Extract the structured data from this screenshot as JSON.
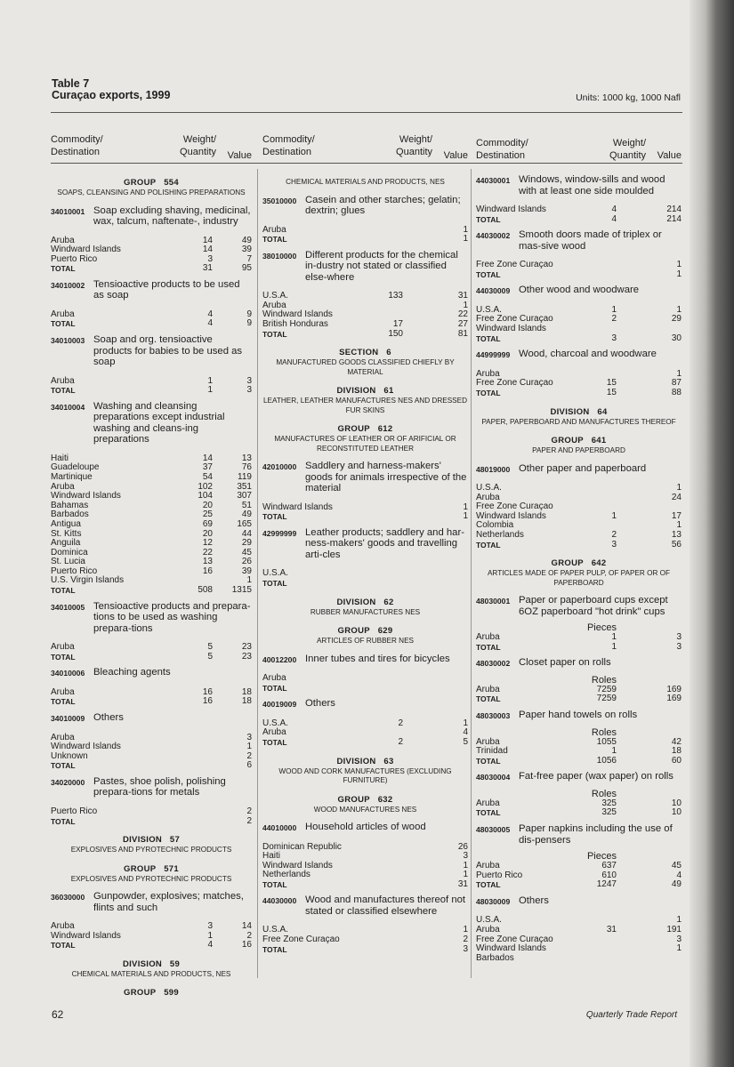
{
  "header": {
    "table": "Table 7",
    "title": "Curaçao exports, 1999",
    "units": "Units: 1000 kg, 1000 Nafl"
  },
  "columns_header": {
    "commodity": "Commodity/",
    "destination": "Destination",
    "weight": "Weight/",
    "quantity": "Quantity",
    "value": "Value"
  },
  "footer": {
    "page": "62",
    "publication": "Quarterly Trade Report"
  },
  "columns": [
    [
      {
        "type": "heading",
        "title": "GROUP 554",
        "subtitle": "SOAPS, CLEANSING AND POLISHING PREPARATIONS"
      },
      {
        "type": "item",
        "code": "34010001",
        "desc": "Soap excluding shaving, medicinal, wax, talcum, naftenate-, industry",
        "rows": [
          [
            "Aruba",
            "14",
            "49"
          ],
          [
            "Windward Islands",
            "14",
            "39"
          ],
          [
            "Puerto Rico",
            "3",
            "7"
          ]
        ],
        "total": [
          "TOTAL",
          "31",
          "95"
        ]
      },
      {
        "type": "item",
        "code": "34010002",
        "desc": "Tensioactive products to be used as soap",
        "rows": [
          [
            "Aruba",
            "4",
            "9"
          ]
        ],
        "total": [
          "TOTAL",
          "4",
          "9"
        ]
      },
      {
        "type": "item",
        "code": "34010003",
        "desc": "Soap and org. tensioactive products for babies to be used as soap",
        "rows": [
          [
            "Aruba",
            "1",
            "3"
          ]
        ],
        "total": [
          "TOTAL",
          "1",
          "3"
        ]
      },
      {
        "type": "item",
        "code": "34010004",
        "desc": "Washing and cleansing preparations except industrial washing and cleans-ing preparations",
        "rows": [
          [
            "Haiti",
            "14",
            "13"
          ],
          [
            "Guadeloupe",
            "37",
            "76"
          ],
          [
            "Martinique",
            "54",
            "119"
          ],
          [
            "Aruba",
            "102",
            "351"
          ],
          [
            "Windward Islands",
            "104",
            "307"
          ],
          [
            "Bahamas",
            "20",
            "51"
          ],
          [
            "Barbados",
            "25",
            "49"
          ],
          [
            "Antigua",
            "69",
            "165"
          ],
          [
            "St. Kitts",
            "20",
            "44"
          ],
          [
            "Anguila",
            "12",
            "29"
          ],
          [
            "Dominica",
            "22",
            "45"
          ],
          [
            "St. Lucia",
            "13",
            "26"
          ],
          [
            "Puerto Rico",
            "16",
            "39"
          ],
          [
            "U.S. Virgin Islands",
            "",
            "1"
          ]
        ],
        "total": [
          "TOTAL",
          "508",
          "1315"
        ]
      },
      {
        "type": "item",
        "code": "34010005",
        "desc": "Tensioactive products and prepara-tions to be used as washing prepara-tions",
        "rows": [
          [
            "Aruba",
            "5",
            "23"
          ]
        ],
        "total": [
          "TOTAL",
          "5",
          "23"
        ]
      },
      {
        "type": "item",
        "code": "34010006",
        "desc": "Bleaching agents",
        "rows": [
          [
            "Aruba",
            "16",
            "18"
          ]
        ],
        "total": [
          "TOTAL",
          "16",
          "18"
        ]
      },
      {
        "type": "item",
        "code": "34010009",
        "desc": "Others",
        "rows": [
          [
            "Aruba",
            "",
            "3"
          ],
          [
            "Windward Islands",
            "",
            "1"
          ],
          [
            "Unknown",
            "",
            "2"
          ]
        ],
        "total": [
          "TOTAL",
          "",
          "6"
        ]
      },
      {
        "type": "item",
        "code": "34020000",
        "desc": "Pastes, shoe polish, polishing prepara-tions for metals",
        "rows": [
          [
            "Puerto Rico",
            "",
            "2"
          ]
        ],
        "total": [
          "TOTAL",
          "",
          "2"
        ]
      },
      {
        "type": "heading",
        "title": "DIVISION 57",
        "subtitle": "EXPLOSIVES AND PYROTECHNIC PRODUCTS"
      },
      {
        "type": "heading",
        "title": "GROUP 571",
        "subtitle": "EXPLOSIVES AND PYROTECHNIC PRODUCTS"
      },
      {
        "type": "item",
        "code": "36030000",
        "desc": "Gunpowder, explosives; matches, flints and such",
        "rows": [
          [
            "Aruba",
            "3",
            "14"
          ],
          [
            "Windward Islands",
            "1",
            "2"
          ]
        ],
        "total": [
          "TOTAL",
          "4",
          "16"
        ]
      },
      {
        "type": "heading",
        "title": "DIVISION 59",
        "subtitle": "CHEMICAL MATERIALS AND PRODUCTS, NES"
      },
      {
        "type": "heading",
        "title": "GROUP 599",
        "subtitle": ""
      }
    ],
    [
      {
        "type": "heading",
        "title": "",
        "subtitle": "CHEMICAL MATERIALS AND PRODUCTS, NES"
      },
      {
        "type": "item",
        "code": "35010000",
        "desc": "Casein and other starches; gelatin; dextrin; glues",
        "rows": [
          [
            "Aruba",
            "",
            "1"
          ]
        ],
        "total": [
          "TOTAL",
          "",
          "1"
        ]
      },
      {
        "type": "item",
        "code": "38010000",
        "desc": "Different products for the chemical in-dustry not stated or classified else-where",
        "rows": [
          [
            "U.S.A.",
            "133",
            "31"
          ],
          [
            "Aruba",
            "",
            "1"
          ],
          [
            "Windward Islands",
            "",
            "22"
          ],
          [
            "British Honduras",
            "17",
            "27"
          ]
        ],
        "total": [
          "TOTAL",
          "150",
          "81"
        ]
      },
      {
        "type": "heading",
        "title": "SECTION 6",
        "subtitle": "MANUFACTURED GOODS CLASSIFIED CHIEFLY BY MATERIAL"
      },
      {
        "type": "heading",
        "title": "DIVISION 61",
        "subtitle": "LEATHER, LEATHER MANUFACTURES NES AND DRESSED FUR SKINS"
      },
      {
        "type": "heading",
        "title": "GROUP 612",
        "subtitle": "MANUFACTURES OF LEATHER OR OF ARIFICIAL OR RECONSTITUTED LEATHER"
      },
      {
        "type": "item",
        "code": "42010000",
        "desc": "Saddlery and harness-makers' goods for animals irrespective of the material",
        "rows": [
          [
            "Windward Islands",
            "",
            "1"
          ]
        ],
        "total": [
          "TOTAL",
          "",
          "1"
        ]
      },
      {
        "type": "item",
        "code": "42999999",
        "desc": "Leather products; saddlery and har-ness-makers' goods and travelling arti-cles",
        "rows": [
          [
            "U.S.A.",
            "",
            ""
          ]
        ],
        "total": [
          "TOTAL",
          "",
          ""
        ]
      },
      {
        "type": "heading",
        "title": "DIVISION 62",
        "subtitle": "RUBBER MANUFACTURES NES"
      },
      {
        "type": "heading",
        "title": "GROUP 629",
        "subtitle": "ARTICLES OF RUBBER NES"
      },
      {
        "type": "item",
        "code": "40012200",
        "desc": "Inner tubes and tires for bicycles",
        "rows": [
          [
            "Aruba",
            "",
            ""
          ]
        ],
        "total": [
          "TOTAL",
          "",
          ""
        ]
      },
      {
        "type": "item",
        "code": "40019009",
        "desc": "Others",
        "rows": [
          [
            "U.S.A.",
            "2",
            "1"
          ],
          [
            "Aruba",
            "",
            "4"
          ]
        ],
        "total": [
          "TOTAL",
          "2",
          "5"
        ]
      },
      {
        "type": "heading",
        "title": "DIVISION 63",
        "subtitle": "WOOD AND CORK MANUFACTURES (EXCLUDING FURNITURE)"
      },
      {
        "type": "heading",
        "title": "GROUP 632",
        "subtitle": "WOOD MANUFACTURES NES"
      },
      {
        "type": "item",
        "code": "44010000",
        "desc": "Household articles of wood",
        "rows": [
          [
            "Dominican Republic",
            "",
            "26"
          ],
          [
            "Haiti",
            "",
            "3"
          ],
          [
            "Windward Islands",
            "",
            "1"
          ],
          [
            "Netherlands",
            "",
            "1"
          ]
        ],
        "total": [
          "TOTAL",
          "",
          "31"
        ]
      },
      {
        "type": "item",
        "code": "44030000",
        "desc": "Wood and manufactures thereof not stated or classified elsewhere",
        "rows": [
          [
            "U.S.A.",
            "",
            "1"
          ],
          [
            "Free Zone Curaçao",
            "",
            "2"
          ]
        ],
        "total": [
          "TOTAL",
          "",
          "3"
        ]
      }
    ],
    [
      {
        "type": "item",
        "code": "44030001",
        "desc": "Windows, window-sills and wood with at least one side moulded",
        "rows": [
          [
            "Windward Islands",
            "4",
            "214"
          ]
        ],
        "total": [
          "TOTAL",
          "4",
          "214"
        ]
      },
      {
        "type": "item",
        "code": "44030002",
        "desc": "Smooth doors made of triplex or mas-sive wood",
        "rows": [
          [
            "Free Zone Curaçao",
            "",
            "1"
          ]
        ],
        "total": [
          "TOTAL",
          "",
          "1"
        ]
      },
      {
        "type": "item",
        "code": "44030009",
        "desc": "Other wood and woodware",
        "rows": [
          [
            "U.S.A.",
            "1",
            "1"
          ],
          [
            "Free Zone Curaçao",
            "2",
            "29"
          ],
          [
            "Windward Islands",
            "",
            ""
          ]
        ],
        "total": [
          "TOTAL",
          "3",
          "30"
        ]
      },
      {
        "type": "item",
        "code": "44999999",
        "desc": "Wood, charcoal and woodware",
        "rows": [
          [
            "Aruba",
            "",
            "1"
          ],
          [
            "Free Zone Curaçao",
            "15",
            "87"
          ]
        ],
        "total": [
          "TOTAL",
          "15",
          "88"
        ]
      },
      {
        "type": "heading",
        "title": "DIVISION 64",
        "subtitle": "PAPER, PAPERBOARD AND MANUFACTURES THEREOF"
      },
      {
        "type": "heading",
        "title": "GROUP 641",
        "subtitle": "PAPER AND PAPERBOARD"
      },
      {
        "type": "item",
        "code": "48019000",
        "desc": "Other paper and paperboard",
        "rows": [
          [
            "U.S.A.",
            "",
            "1"
          ],
          [
            "Aruba",
            "",
            "24"
          ],
          [
            "Free Zone Curaçao",
            "",
            ""
          ],
          [
            "Windward Islands",
            "1",
            "17"
          ],
          [
            "Colombia",
            "",
            "1"
          ],
          [
            "Netherlands",
            "2",
            "13"
          ]
        ],
        "total": [
          "TOTAL",
          "3",
          "56"
        ]
      },
      {
        "type": "heading",
        "title": "GROUP 642",
        "subtitle": "ARTICLES MADE OF PAPER PULP, OF PAPER OR OF PAPERBOARD"
      },
      {
        "type": "item",
        "code": "48030001",
        "desc": "Paper or paperboard cups except 6OZ paperboard \"hot drink\" cups",
        "unit": "Pieces",
        "rows": [
          [
            "Aruba",
            "1",
            "3"
          ]
        ],
        "total": [
          "TOTAL",
          "1",
          "3"
        ]
      },
      {
        "type": "item",
        "code": "48030002",
        "desc": "Closet paper on rolls",
        "unit": "Roles",
        "rows": [
          [
            "Aruba",
            "7259",
            "169"
          ]
        ],
        "total": [
          "TOTAL",
          "7259",
          "169"
        ]
      },
      {
        "type": "item",
        "code": "48030003",
        "desc": "Paper hand towels on rolls",
        "unit": "Roles",
        "rows": [
          [
            "Aruba",
            "1055",
            "42"
          ],
          [
            "Trinidad",
            "1",
            "18"
          ]
        ],
        "total": [
          "TOTAL",
          "1056",
          "60"
        ]
      },
      {
        "type": "item",
        "code": "48030004",
        "desc": "Fat-free paper (wax paper) on rolls",
        "unit": "Roles",
        "rows": [
          [
            "Aruba",
            "325",
            "10"
          ]
        ],
        "total": [
          "TOTAL",
          "325",
          "10"
        ]
      },
      {
        "type": "item",
        "code": "48030005",
        "desc": "Paper napkins including the use of dis-pensers",
        "unit": "Pieces",
        "rows": [
          [
            "Aruba",
            "637",
            "45"
          ],
          [
            "Puerto Rico",
            "610",
            "4"
          ]
        ],
        "total": [
          "TOTAL",
          "1247",
          "49"
        ]
      },
      {
        "type": "item",
        "code": "48030009",
        "desc": "Others",
        "rows": [
          [
            "U.S.A.",
            "",
            "1"
          ],
          [
            "Aruba",
            "31",
            "191"
          ],
          [
            "Free Zone Curaçao",
            "",
            "3"
          ],
          [
            "Windward Islands",
            "",
            "1"
          ],
          [
            "Barbados",
            "",
            ""
          ]
        ]
      }
    ]
  ]
}
